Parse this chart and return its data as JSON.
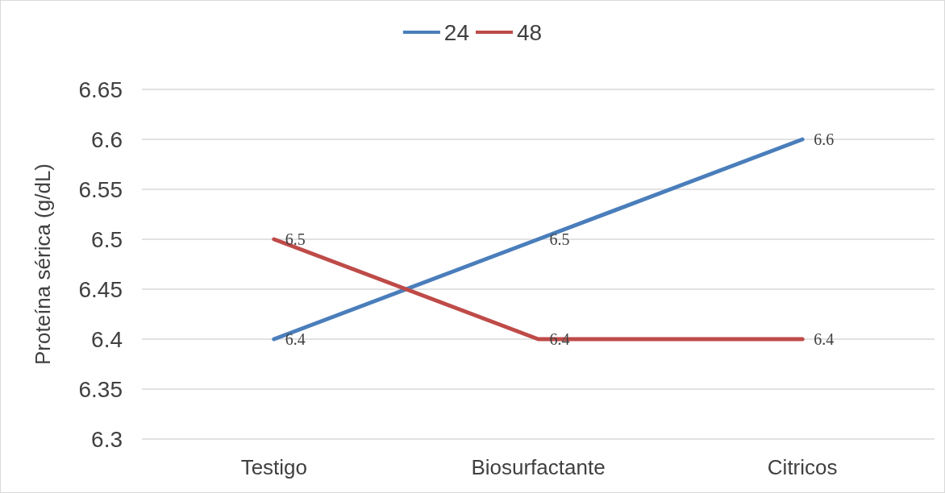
{
  "chart_data": {
    "type": "line",
    "ylabel": "Proteína sérica (g/dL)",
    "categories": [
      "Testigo",
      "Biosurfactante",
      "Citricos"
    ],
    "series": [
      {
        "name": "24",
        "color": "#4a7ebb",
        "values": [
          6.4,
          6.5,
          6.6
        ]
      },
      {
        "name": "48",
        "color": "#be4b48",
        "values": [
          6.5,
          6.4,
          6.4
        ]
      }
    ],
    "ylim": [
      6.3,
      6.65
    ],
    "yticks": [
      6.3,
      6.35,
      6.4,
      6.45,
      6.5,
      6.55,
      6.6,
      6.65
    ],
    "grid": "y",
    "legend": "top",
    "marker": "none",
    "line_style": "solid",
    "data_labels": true
  }
}
